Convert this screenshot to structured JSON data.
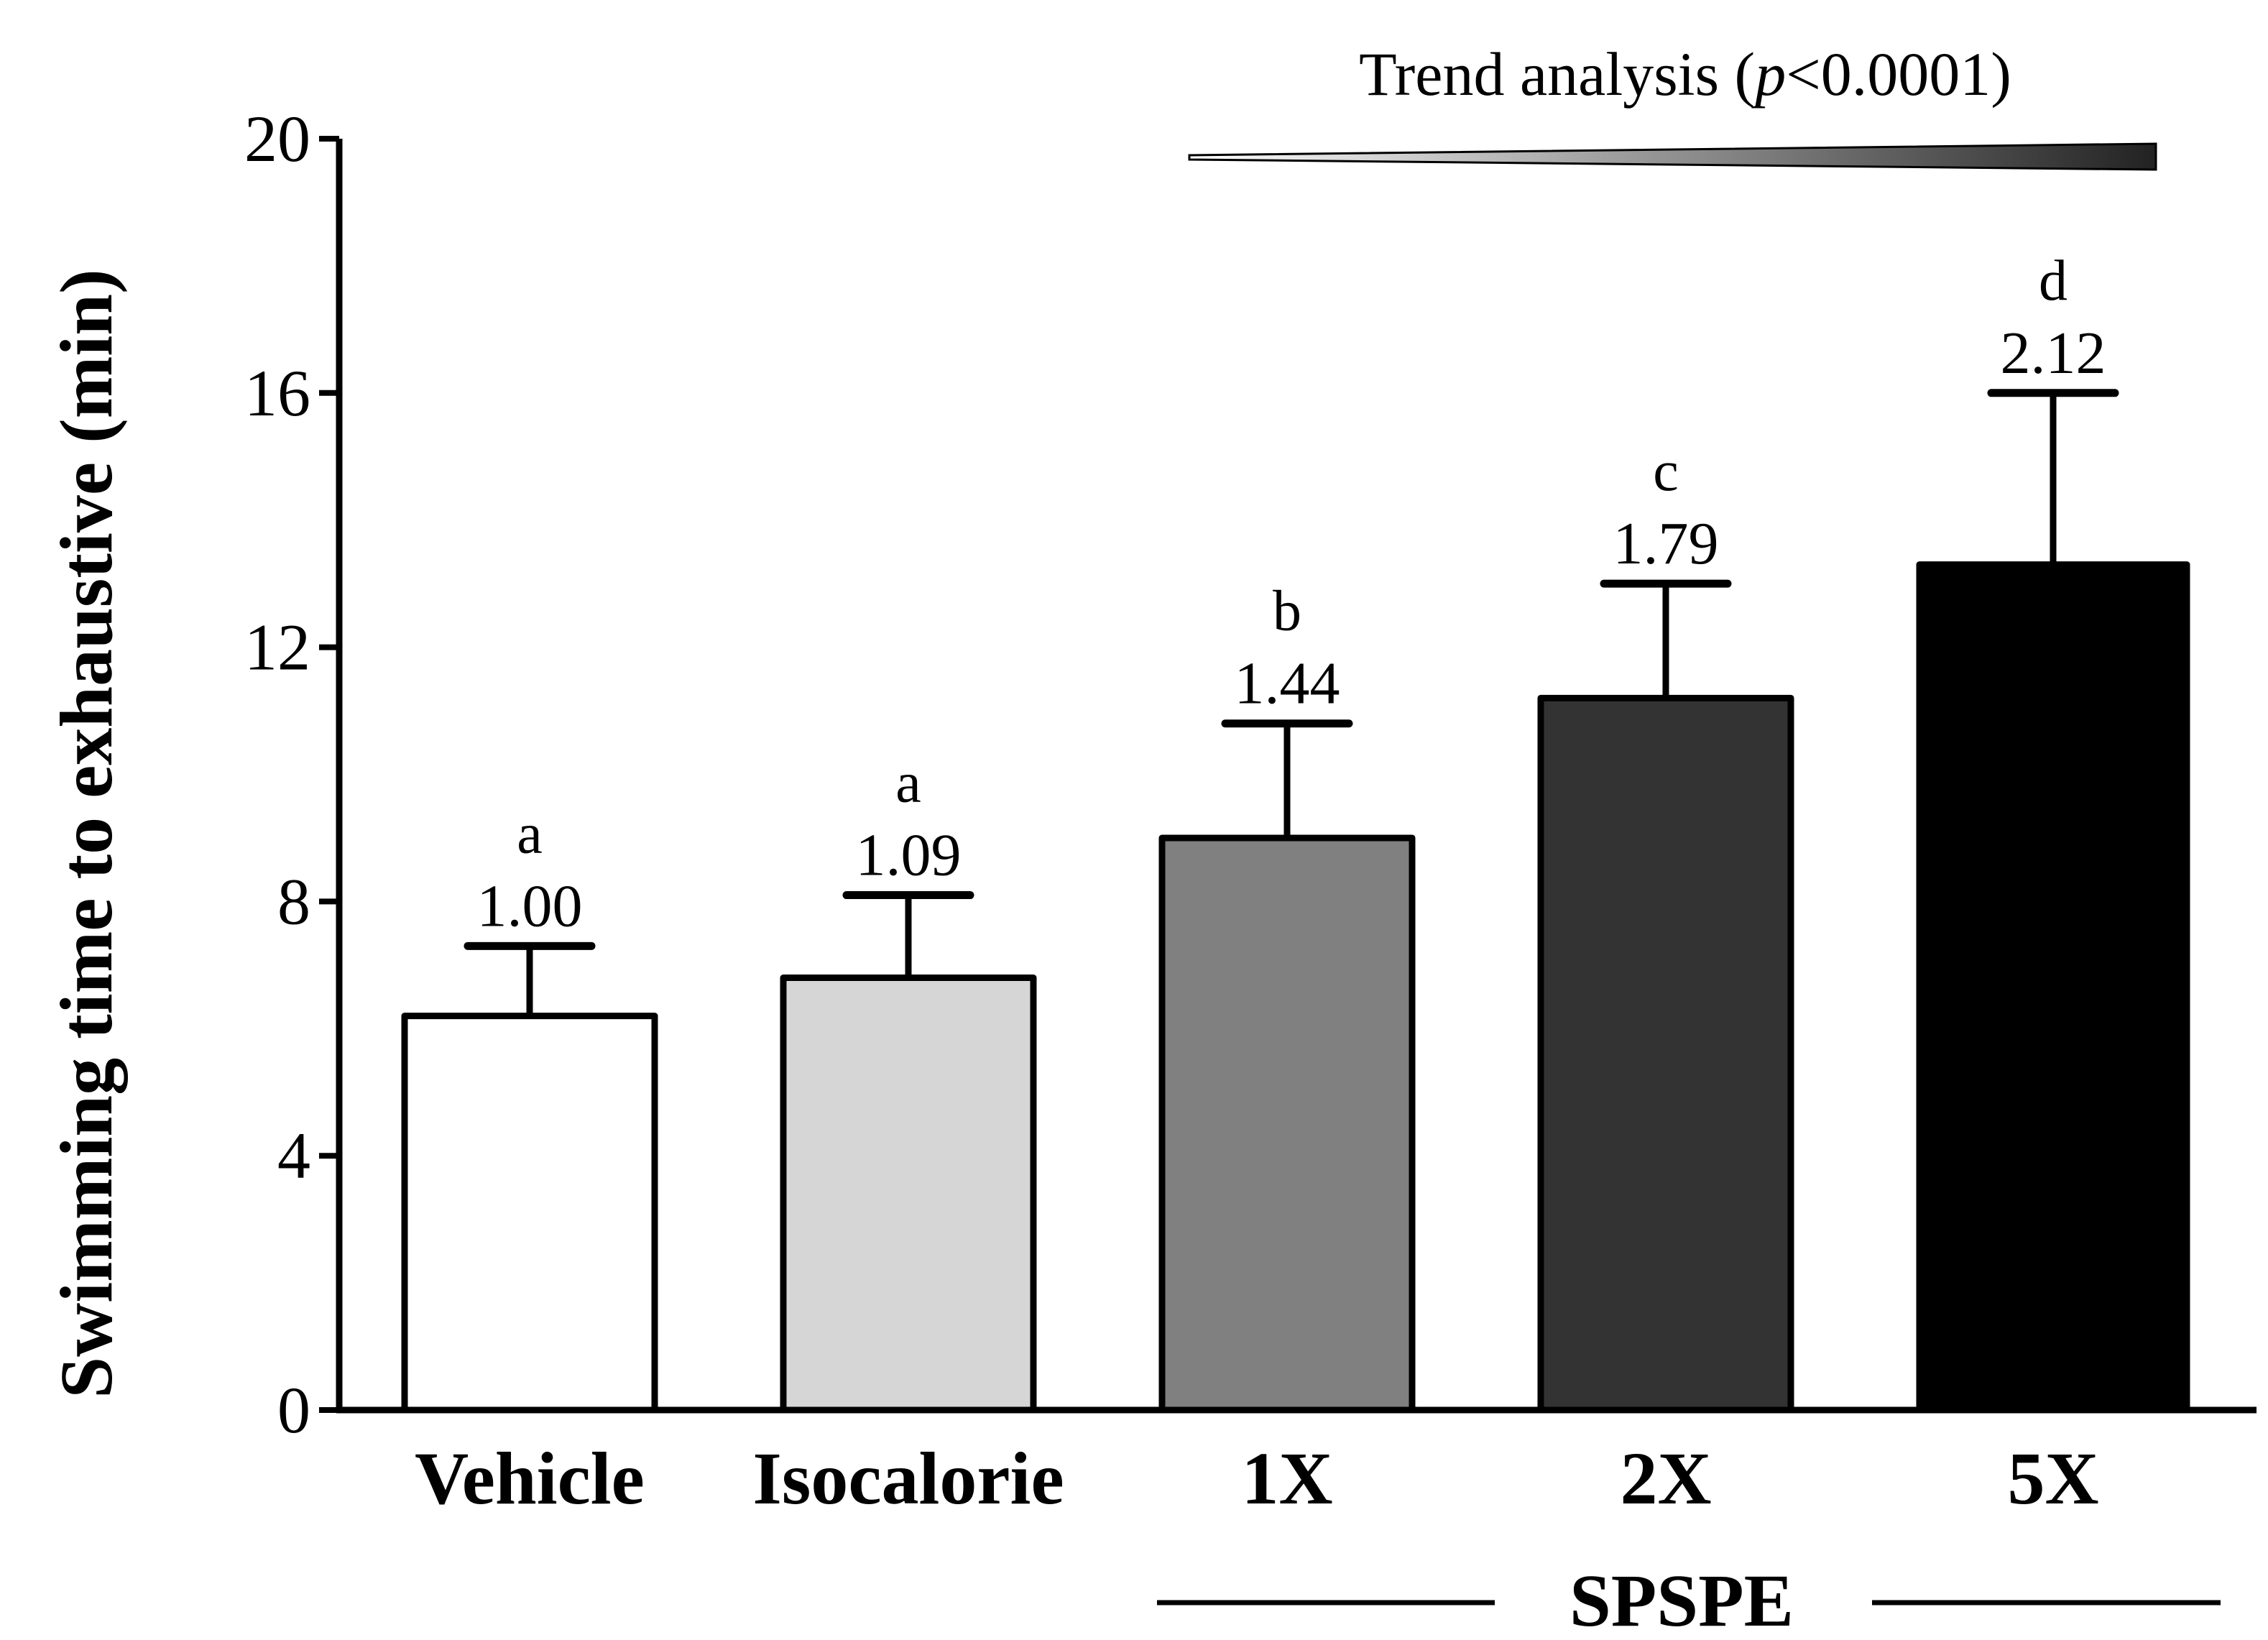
{
  "chart_data": {
    "type": "bar",
    "ylabel": "Swimming time to exhaustive (min)",
    "ylim": [
      0,
      20
    ],
    "yticks": [
      0,
      4,
      8,
      12,
      16,
      20
    ],
    "categories": [
      "Vehicle",
      "Isocalorie",
      "1X",
      "2X",
      "5X"
    ],
    "values": [
      6.2,
      6.8,
      9.0,
      11.2,
      13.3
    ],
    "errors": [
      1.1,
      1.3,
      1.8,
      1.8,
      2.7
    ],
    "ratios": [
      "1.00",
      "1.09",
      "1.44",
      "1.79",
      "2.12"
    ],
    "significance": [
      "a",
      "a",
      "b",
      "c",
      "d"
    ],
    "colors": [
      "#ffffff",
      "#d6d6d6",
      "#808080",
      "#333333",
      "#000000"
    ],
    "group_label": "SPSPE",
    "group_members": [
      "1X",
      "2X",
      "5X"
    ],
    "trend": {
      "prefix": "Trend analysis (",
      "p_symbol": "p",
      "suffix": "<0.0001)"
    }
  }
}
